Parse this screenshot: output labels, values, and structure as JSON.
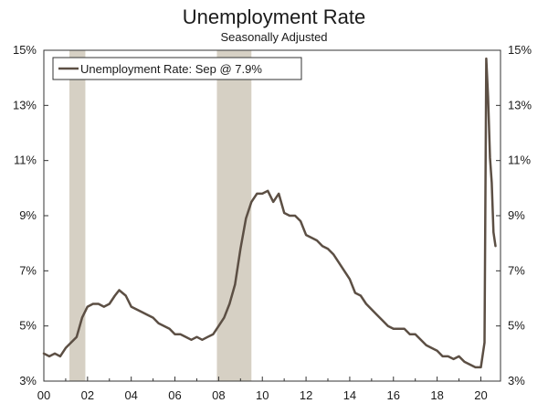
{
  "chart_data": {
    "type": "line",
    "title": "Unemployment Rate",
    "subtitle": "Seasonally Adjusted",
    "legend": {
      "placement": "top-left",
      "label": "Unemployment Rate: Sep @ 7.9%"
    },
    "x_tick_labels": [
      "00",
      "02",
      "04",
      "06",
      "08",
      "10",
      "12",
      "14",
      "16",
      "18",
      "20"
    ],
    "y_tick_labels": [
      "3%",
      "5%",
      "7%",
      "9%",
      "11%",
      "13%",
      "15%"
    ],
    "xlim": [
      2000,
      2020.9
    ],
    "ylim": [
      3,
      15
    ],
    "grid": false,
    "recessions": [
      [
        2001.17,
        2001.9
      ],
      [
        2007.92,
        2009.5
      ]
    ],
    "series": [
      {
        "name": "Unemployment Rate",
        "color": "#5c4f44",
        "x": [
          2000.0,
          2000.25,
          2000.5,
          2000.75,
          2001.0,
          2001.25,
          2001.5,
          2001.75,
          2002.0,
          2002.25,
          2002.5,
          2002.75,
          2003.0,
          2003.25,
          2003.45,
          2003.75,
          2004.0,
          2004.25,
          2004.5,
          2004.75,
          2005.0,
          2005.25,
          2005.5,
          2005.75,
          2006.0,
          2006.25,
          2006.5,
          2006.75,
          2007.0,
          2007.25,
          2007.5,
          2007.75,
          2008.0,
          2008.25,
          2008.5,
          2008.75,
          2009.0,
          2009.25,
          2009.5,
          2009.75,
          2010.0,
          2010.25,
          2010.5,
          2010.75,
          2011.0,
          2011.25,
          2011.5,
          2011.75,
          2012.0,
          2012.25,
          2012.5,
          2012.75,
          2013.0,
          2013.25,
          2013.5,
          2013.75,
          2014.0,
          2014.25,
          2014.5,
          2014.75,
          2015.0,
          2015.25,
          2015.5,
          2015.75,
          2016.0,
          2016.25,
          2016.5,
          2016.75,
          2017.0,
          2017.25,
          2017.5,
          2017.75,
          2018.0,
          2018.25,
          2018.5,
          2018.75,
          2019.0,
          2019.25,
          2019.5,
          2019.75,
          2020.0,
          2020.17,
          2020.25,
          2020.33,
          2020.42,
          2020.5,
          2020.58,
          2020.67
        ],
        "values": [
          4.0,
          3.9,
          4.0,
          3.9,
          4.2,
          4.4,
          4.6,
          5.3,
          5.7,
          5.8,
          5.8,
          5.7,
          5.8,
          6.1,
          6.3,
          6.1,
          5.7,
          5.6,
          5.5,
          5.4,
          5.3,
          5.1,
          5.0,
          4.9,
          4.7,
          4.7,
          4.6,
          4.5,
          4.6,
          4.5,
          4.6,
          4.7,
          5.0,
          5.3,
          5.8,
          6.5,
          7.8,
          8.9,
          9.5,
          9.8,
          9.8,
          9.9,
          9.5,
          9.8,
          9.1,
          9.0,
          9.0,
          8.8,
          8.3,
          8.2,
          8.1,
          7.9,
          7.8,
          7.6,
          7.3,
          7.0,
          6.7,
          6.2,
          6.1,
          5.8,
          5.6,
          5.4,
          5.2,
          5.0,
          4.9,
          4.9,
          4.9,
          4.7,
          4.7,
          4.5,
          4.3,
          4.2,
          4.1,
          3.9,
          3.9,
          3.8,
          3.9,
          3.7,
          3.6,
          3.5,
          3.5,
          4.4,
          14.7,
          13.3,
          11.1,
          10.2,
          8.4,
          7.9
        ]
      }
    ]
  }
}
